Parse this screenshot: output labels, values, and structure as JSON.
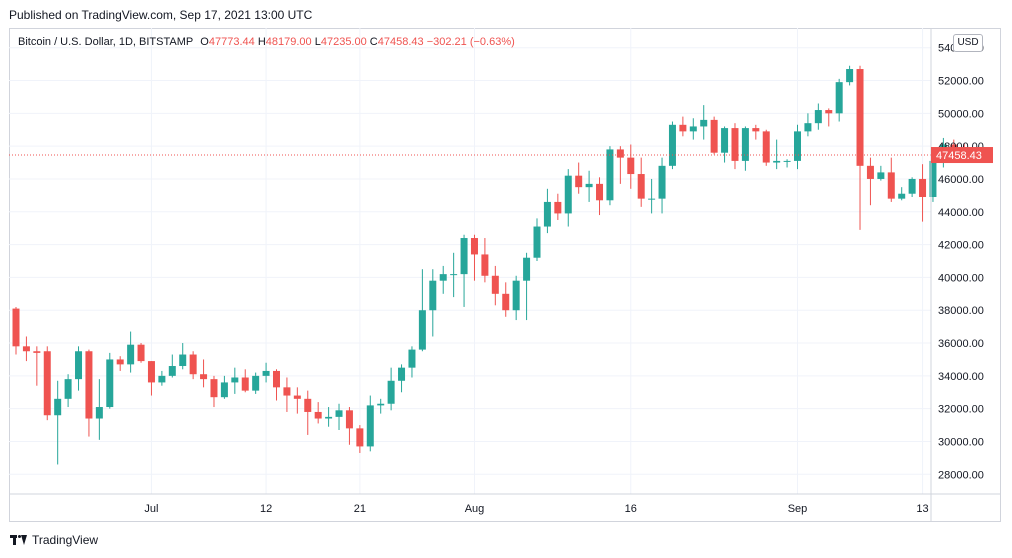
{
  "published": "Published on TradingView.com, Sep 17, 2021 13:00 UTC",
  "legend": {
    "symbol": "Bitcoin / U.S. Dollar, 1D, BITSTAMP",
    "o_label": "O",
    "o_value": "47773.44",
    "h_label": "H",
    "h_value": "48179.00",
    "l_label": "L",
    "l_value": "47235.00",
    "c_label": "C",
    "c_value": "47458.43",
    "change": "−302.21 (−0.63%)"
  },
  "currency_button": "USD",
  "footer": {
    "brand": "TradingView",
    "logo_icon": "tradingview-logo-icon"
  },
  "colors": {
    "up": "#26a69a",
    "down": "#ef5350",
    "grid": "#f0f3fa",
    "text": "#131722"
  },
  "chart_data": {
    "type": "candlestick",
    "title": "Bitcoin / U.S. Dollar, 1D, BITSTAMP",
    "xlabel": "",
    "ylabel": "",
    "ylim": [
      26800,
      55200
    ],
    "grid": true,
    "y_ticks": [
      54000,
      52000,
      50000,
      48000,
      46000,
      44000,
      42000,
      40000,
      38000,
      36000,
      34000,
      32000,
      30000,
      28000
    ],
    "y_tick_labels": [
      "54000.00",
      "52000.00",
      "50000.00",
      "48000.00",
      "46000.00",
      "44000.00",
      "42000.00",
      "40000.00",
      "38000.00",
      "36000.00",
      "34000.00",
      "32000.00",
      "30000.00",
      "28000.00"
    ],
    "x_ticks": [
      {
        "label": "Jul",
        "index": 13
      },
      {
        "label": "12",
        "index": 24
      },
      {
        "label": "21",
        "index": 33
      },
      {
        "label": "Aug",
        "index": 44
      },
      {
        "label": "16",
        "index": 59
      },
      {
        "label": "Sep",
        "index": 75
      },
      {
        "label": "13",
        "index": 87
      }
    ],
    "last_price": 47458.43,
    "last_price_label": "47458.43",
    "candles": [
      {
        "o": 38100,
        "h": 38200,
        "l": 35300,
        "c": 35800
      },
      {
        "o": 35800,
        "h": 36400,
        "l": 34900,
        "c": 35500
      },
      {
        "o": 35500,
        "h": 35800,
        "l": 33400,
        "c": 35400
      },
      {
        "o": 35500,
        "h": 35800,
        "l": 31300,
        "c": 31600
      },
      {
        "o": 31600,
        "h": 33700,
        "l": 28600,
        "c": 32600
      },
      {
        "o": 32600,
        "h": 34100,
        "l": 32100,
        "c": 33800
      },
      {
        "o": 33800,
        "h": 35800,
        "l": 33100,
        "c": 35500
      },
      {
        "o": 35500,
        "h": 35600,
        "l": 30300,
        "c": 31400
      },
      {
        "o": 31400,
        "h": 33800,
        "l": 30100,
        "c": 32100
      },
      {
        "o": 32100,
        "h": 35400,
        "l": 32000,
        "c": 35000
      },
      {
        "o": 35000,
        "h": 35200,
        "l": 34300,
        "c": 34700
      },
      {
        "o": 34700,
        "h": 36700,
        "l": 34200,
        "c": 35900
      },
      {
        "o": 35900,
        "h": 36000,
        "l": 34800,
        "c": 34900
      },
      {
        "o": 34900,
        "h": 34900,
        "l": 32800,
        "c": 33600
      },
      {
        "o": 33600,
        "h": 34300,
        "l": 33400,
        "c": 34000
      },
      {
        "o": 34000,
        "h": 35300,
        "l": 33900,
        "c": 34600
      },
      {
        "o": 34600,
        "h": 36000,
        "l": 34400,
        "c": 35300
      },
      {
        "o": 35300,
        "h": 35500,
        "l": 33800,
        "c": 34100
      },
      {
        "o": 34100,
        "h": 35000,
        "l": 33300,
        "c": 33800
      },
      {
        "o": 33800,
        "h": 34000,
        "l": 32100,
        "c": 32700
      },
      {
        "o": 32700,
        "h": 34000,
        "l": 32600,
        "c": 33600
      },
      {
        "o": 33600,
        "h": 34500,
        "l": 32900,
        "c": 33900
      },
      {
        "o": 33900,
        "h": 34400,
        "l": 33000,
        "c": 33100
      },
      {
        "o": 33100,
        "h": 34200,
        "l": 32900,
        "c": 34000
      },
      {
        "o": 34000,
        "h": 34800,
        "l": 33600,
        "c": 34300
      },
      {
        "o": 34300,
        "h": 34400,
        "l": 32500,
        "c": 33300
      },
      {
        "o": 33300,
        "h": 33900,
        "l": 31800,
        "c": 32800
      },
      {
        "o": 32800,
        "h": 33300,
        "l": 31700,
        "c": 32600
      },
      {
        "o": 32600,
        "h": 33100,
        "l": 30400,
        "c": 31800
      },
      {
        "o": 31800,
        "h": 32400,
        "l": 31100,
        "c": 31400
      },
      {
        "o": 31400,
        "h": 32100,
        "l": 30900,
        "c": 31500
      },
      {
        "o": 31500,
        "h": 32300,
        "l": 30700,
        "c": 31900
      },
      {
        "o": 31900,
        "h": 32100,
        "l": 29800,
        "c": 30800
      },
      {
        "o": 30800,
        "h": 31000,
        "l": 29300,
        "c": 29700
      },
      {
        "o": 29700,
        "h": 32800,
        "l": 29400,
        "c": 32200
      },
      {
        "o": 32200,
        "h": 32600,
        "l": 31700,
        "c": 32300
      },
      {
        "o": 32300,
        "h": 34500,
        "l": 31900,
        "c": 33700
      },
      {
        "o": 33700,
        "h": 34700,
        "l": 33000,
        "c": 34500
      },
      {
        "o": 34500,
        "h": 35800,
        "l": 33900,
        "c": 35600
      },
      {
        "o": 35600,
        "h": 40500,
        "l": 35500,
        "c": 38000
      },
      {
        "o": 38000,
        "h": 40500,
        "l": 36400,
        "c": 39800
      },
      {
        "o": 39800,
        "h": 40700,
        "l": 39000,
        "c": 40200
      },
      {
        "o": 40200,
        "h": 41500,
        "l": 38800,
        "c": 40200
      },
      {
        "o": 40200,
        "h": 42600,
        "l": 38200,
        "c": 42400
      },
      {
        "o": 42400,
        "h": 42600,
        "l": 39800,
        "c": 41400
      },
      {
        "o": 41400,
        "h": 42400,
        "l": 39700,
        "c": 40100
      },
      {
        "o": 40100,
        "h": 40700,
        "l": 38300,
        "c": 39000
      },
      {
        "o": 39000,
        "h": 39700,
        "l": 37600,
        "c": 38000
      },
      {
        "o": 38000,
        "h": 40100,
        "l": 37400,
        "c": 39800
      },
      {
        "o": 39800,
        "h": 41500,
        "l": 37400,
        "c": 41200
      },
      {
        "o": 41200,
        "h": 43600,
        "l": 41000,
        "c": 43100
      },
      {
        "o": 43100,
        "h": 45400,
        "l": 42700,
        "c": 44600
      },
      {
        "o": 44600,
        "h": 45100,
        "l": 43500,
        "c": 43900
      },
      {
        "o": 43900,
        "h": 46600,
        "l": 43100,
        "c": 46200
      },
      {
        "o": 46200,
        "h": 47000,
        "l": 45100,
        "c": 45500
      },
      {
        "o": 45500,
        "h": 46500,
        "l": 44600,
        "c": 45700
      },
      {
        "o": 45700,
        "h": 46100,
        "l": 43800,
        "c": 44700
      },
      {
        "o": 44700,
        "h": 48000,
        "l": 44400,
        "c": 47800
      },
      {
        "o": 47800,
        "h": 48000,
        "l": 45700,
        "c": 47300
      },
      {
        "o": 47300,
        "h": 48100,
        "l": 45400,
        "c": 46300
      },
      {
        "o": 46300,
        "h": 47300,
        "l": 44300,
        "c": 44800
      },
      {
        "o": 44800,
        "h": 46000,
        "l": 43900,
        "c": 44800
      },
      {
        "o": 44800,
        "h": 47300,
        "l": 43900,
        "c": 46800
      },
      {
        "o": 46800,
        "h": 49500,
        "l": 46600,
        "c": 49300
      },
      {
        "o": 49300,
        "h": 49800,
        "l": 48600,
        "c": 48900
      },
      {
        "o": 48900,
        "h": 49700,
        "l": 48400,
        "c": 49200
      },
      {
        "o": 49200,
        "h": 50500,
        "l": 48400,
        "c": 49600
      },
      {
        "o": 49600,
        "h": 49800,
        "l": 47500,
        "c": 47600
      },
      {
        "o": 47600,
        "h": 49200,
        "l": 47000,
        "c": 49100
      },
      {
        "o": 49100,
        "h": 49400,
        "l": 46600,
        "c": 47100
      },
      {
        "o": 47100,
        "h": 49200,
        "l": 46500,
        "c": 49100
      },
      {
        "o": 49100,
        "h": 49300,
        "l": 48400,
        "c": 48900
      },
      {
        "o": 48900,
        "h": 49000,
        "l": 46800,
        "c": 47000
      },
      {
        "o": 47000,
        "h": 48400,
        "l": 46600,
        "c": 47100
      },
      {
        "o": 47100,
        "h": 47200,
        "l": 46700,
        "c": 47100
      },
      {
        "o": 47100,
        "h": 49300,
        "l": 46600,
        "c": 48900
      },
      {
        "o": 48900,
        "h": 50000,
        "l": 48600,
        "c": 49400
      },
      {
        "o": 49400,
        "h": 50600,
        "l": 49000,
        "c": 50200
      },
      {
        "o": 50200,
        "h": 50300,
        "l": 49200,
        "c": 50000
      },
      {
        "o": 50000,
        "h": 52100,
        "l": 49500,
        "c": 51900
      },
      {
        "o": 51900,
        "h": 52900,
        "l": 51700,
        "c": 52700
      },
      {
        "o": 52700,
        "h": 52900,
        "l": 42900,
        "c": 46800
      },
      {
        "o": 46800,
        "h": 47300,
        "l": 44400,
        "c": 46000
      },
      {
        "o": 46000,
        "h": 46800,
        "l": 45900,
        "c": 46400
      },
      {
        "o": 46400,
        "h": 47300,
        "l": 44600,
        "c": 44800
      },
      {
        "o": 44800,
        "h": 45500,
        "l": 44700,
        "c": 45100
      },
      {
        "o": 45100,
        "h": 46100,
        "l": 44900,
        "c": 46000
      },
      {
        "o": 46000,
        "h": 46900,
        "l": 43400,
        "c": 44900
      },
      {
        "o": 44900,
        "h": 47400,
        "l": 44600,
        "c": 47100
      },
      {
        "o": 47100,
        "h": 48500,
        "l": 46700,
        "c": 48100
      },
      {
        "o": 48100,
        "h": 48400,
        "l": 47300,
        "c": 47773
      },
      {
        "o": 47773,
        "h": 48179,
        "l": 47235,
        "c": 47458
      }
    ]
  }
}
